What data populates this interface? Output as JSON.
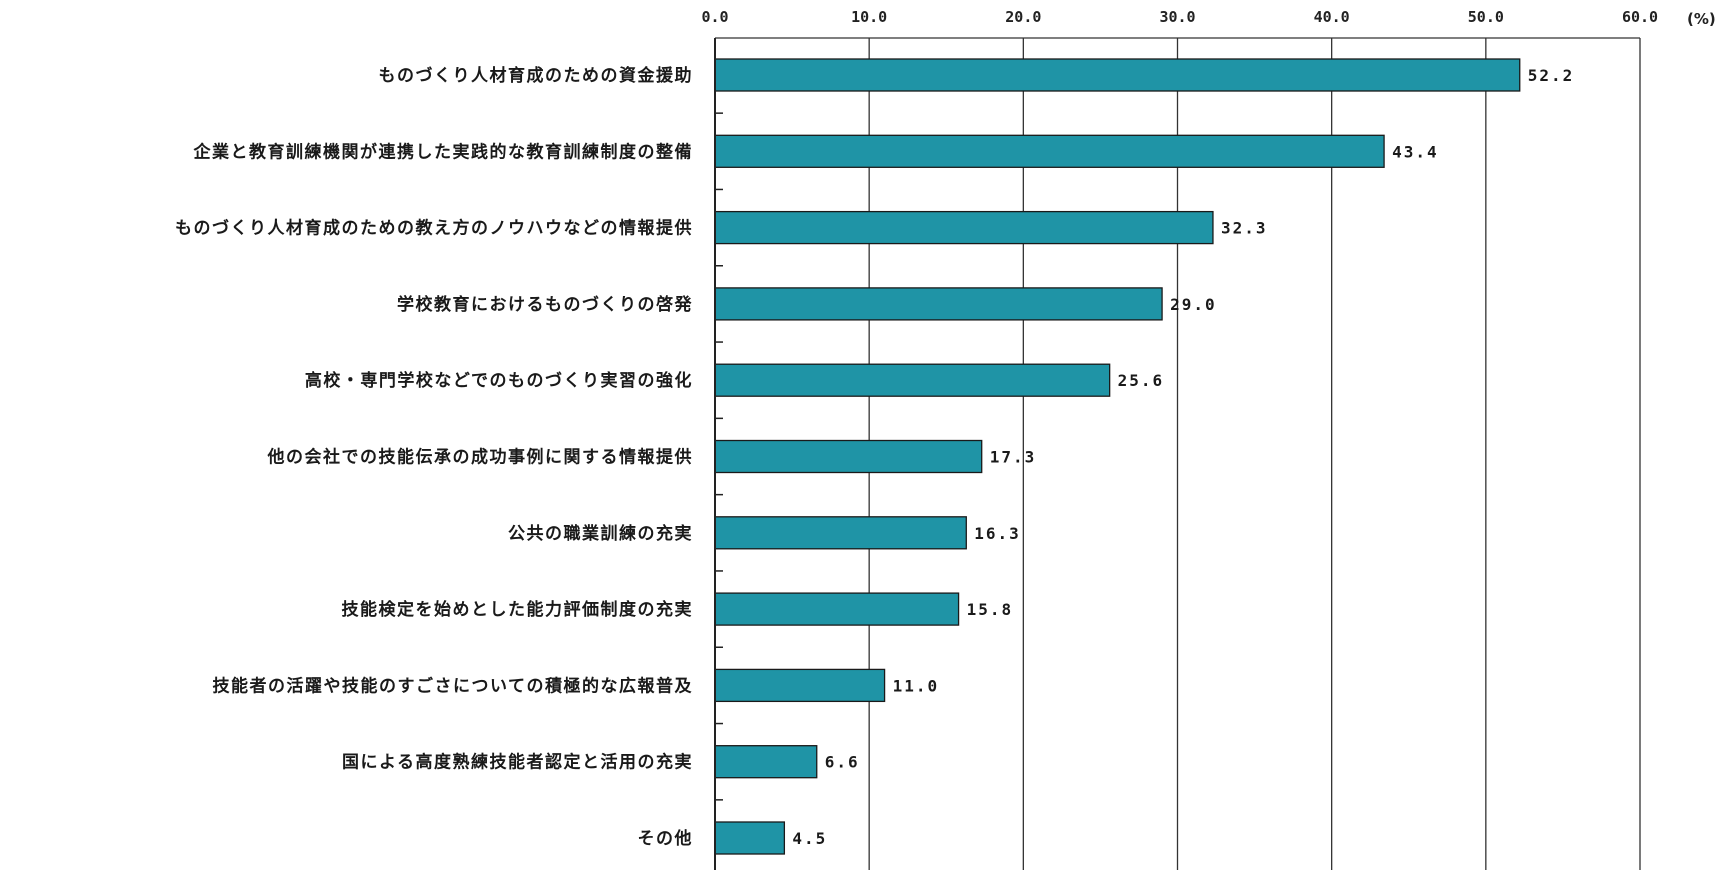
{
  "chart_data": {
    "type": "bar",
    "orientation": "horizontal",
    "title": "",
    "xlabel": "",
    "ylabel": "",
    "unit": "(%)",
    "xlim": [
      0,
      60
    ],
    "x_ticks": [
      "0.0",
      "10.0",
      "20.0",
      "30.0",
      "40.0",
      "50.0",
      "60.0"
    ],
    "grid": true,
    "bar_color": "#1f94a6",
    "categories": [
      "ものづくり人材育成のための資金援助",
      "企業と教育訓練機関が連携した実践的な教育訓練制度の整備",
      "ものづくり人材育成のための教え方のノウハウなどの情報提供",
      "学校教育におけるものづくりの啓発",
      "高校・専門学校などでのものづくり実習の強化",
      "他の会社での技能伝承の成功事例に関する情報提供",
      "公共の職業訓練の充実",
      "技能検定を始めとした能力評価制度の充実",
      "技能者の活躍や技能のすごさについての積極的な広報普及",
      "国による高度熟練技能者認定と活用の充実",
      "その他"
    ],
    "values": [
      52.2,
      43.4,
      32.3,
      29.0,
      25.6,
      17.3,
      16.3,
      15.8,
      11.0,
      6.6,
      4.5
    ],
    "value_labels": [
      "52.2",
      "43.4",
      "32.3",
      "29.0",
      "25.6",
      "17.3",
      "16.3",
      "15.8",
      "11.0",
      "6.6",
      "4.5"
    ]
  }
}
